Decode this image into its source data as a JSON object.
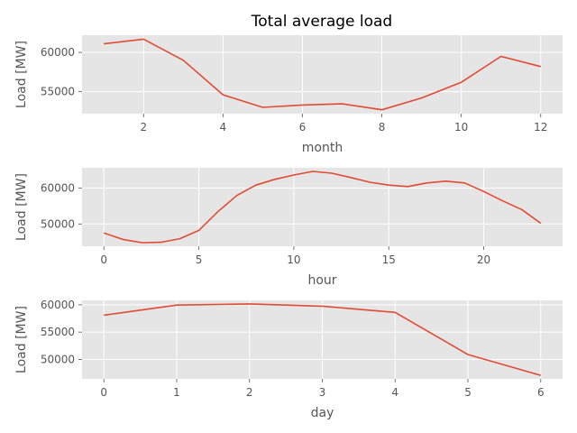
{
  "title": "Total average load",
  "colors": {
    "line": "#e24a33",
    "background": "#e5e5e5",
    "grid": "#ffffff",
    "text": "#555555"
  },
  "chart_data": [
    {
      "type": "line",
      "xlabel": "month",
      "ylabel": "Load [MW]",
      "grid": true,
      "x": [
        1,
        2,
        3,
        4,
        5,
        6,
        7,
        8,
        9,
        10,
        11,
        12
      ],
      "values": [
        61100,
        61700,
        59000,
        54600,
        53000,
        53300,
        53450,
        52700,
        54200,
        56200,
        59500,
        58200
      ],
      "xlim": [
        0.45,
        12.55
      ],
      "ylim": [
        52200,
        62200
      ],
      "xticks": [
        2,
        4,
        6,
        8,
        10,
        12
      ],
      "yticks": [
        55000,
        60000
      ]
    },
    {
      "type": "line",
      "xlabel": "hour",
      "ylabel": "Load [MW]",
      "grid": true,
      "x": [
        0,
        1,
        2,
        3,
        4,
        5,
        6,
        7,
        8,
        9,
        10,
        11,
        12,
        13,
        14,
        15,
        16,
        17,
        18,
        19,
        20,
        21,
        22,
        23
      ],
      "values": [
        47500,
        45700,
        44800,
        44900,
        45900,
        48200,
        53400,
        57900,
        60800,
        62400,
        63600,
        64600,
        64100,
        62900,
        61600,
        60800,
        60400,
        61400,
        61900,
        61400,
        59000,
        56400,
        54000,
        50200
      ],
      "xlim": [
        -1.15,
        24.15
      ],
      "ylim": [
        43800,
        65600
      ],
      "xticks": [
        0,
        5,
        10,
        15,
        20
      ],
      "yticks": [
        50000,
        60000
      ]
    },
    {
      "type": "line",
      "xlabel": "day",
      "ylabel": "Load [MW]",
      "grid": true,
      "x": [
        0,
        1,
        2,
        3,
        4,
        5,
        6
      ],
      "values": [
        58100,
        59950,
        60150,
        59750,
        58600,
        50900,
        47100
      ],
      "xlim": [
        -0.3,
        6.3
      ],
      "ylim": [
        46450,
        60800
      ],
      "xticks": [
        0,
        1,
        2,
        3,
        4,
        5,
        6
      ],
      "yticks": [
        50000,
        55000,
        60000
      ]
    }
  ]
}
